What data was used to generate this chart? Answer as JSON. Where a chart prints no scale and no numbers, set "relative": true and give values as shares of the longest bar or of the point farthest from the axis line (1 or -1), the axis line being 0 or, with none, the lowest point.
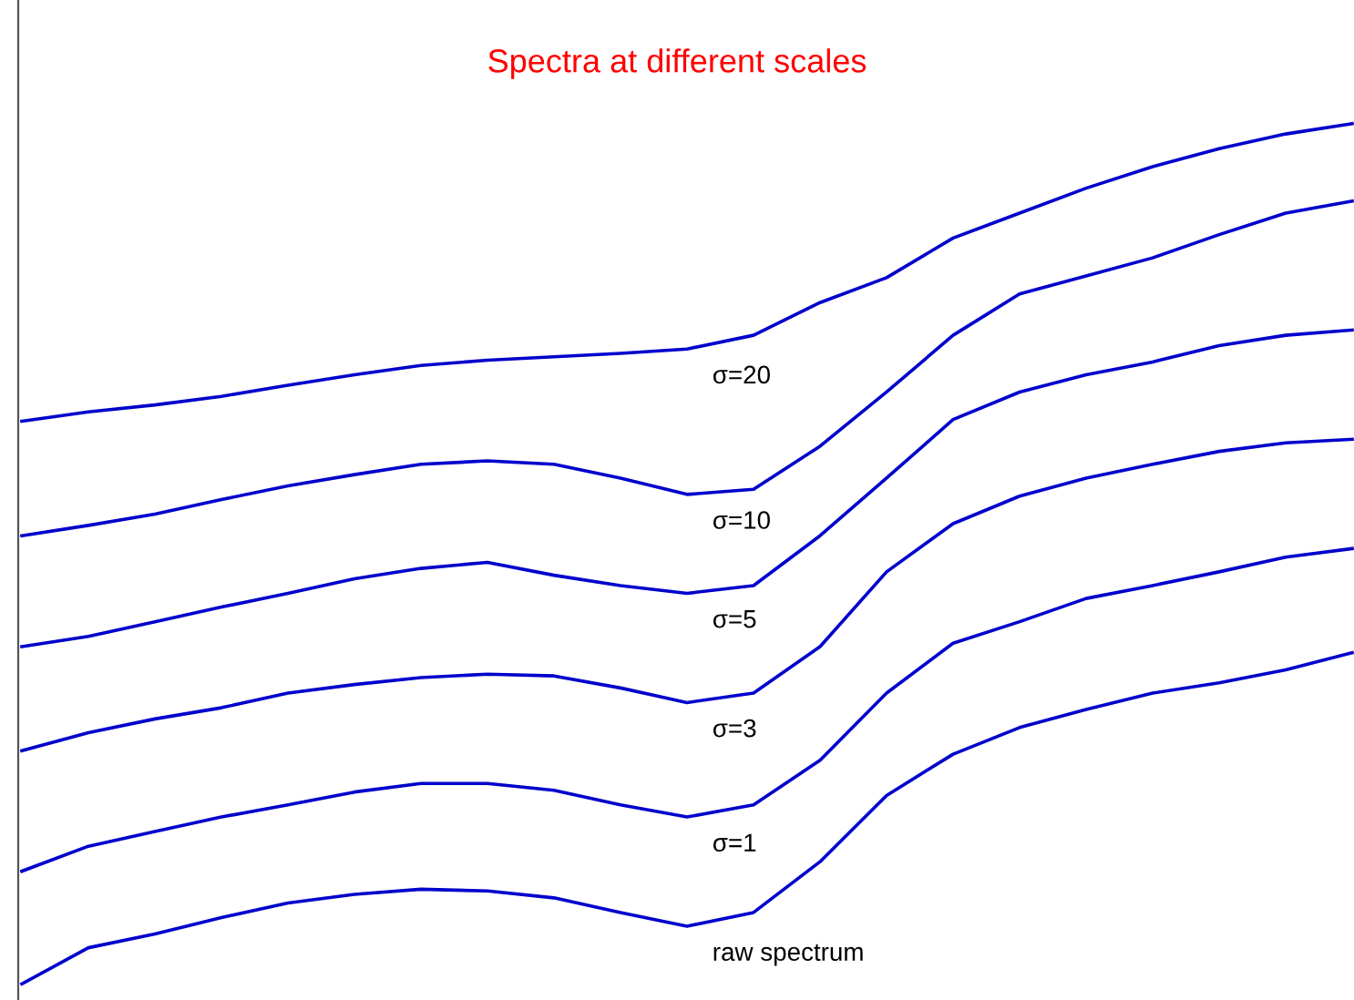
{
  "chart_data": {
    "type": "line",
    "title": "Spectra at different scales",
    "relative": true,
    "grid": false,
    "legend": false,
    "marker": "none",
    "line_style": "solid",
    "categories": [
      null,
      null,
      null,
      null,
      null,
      null,
      null,
      null,
      null,
      null,
      null,
      null,
      null,
      null,
      null,
      null,
      null,
      null,
      null,
      null,
      null
    ],
    "series": [
      {
        "name": "σ=20",
        "color": "#0000cc",
        "values": [
          0.654,
          0.665,
          0.673,
          0.683,
          0.696,
          0.708,
          0.719,
          0.725,
          0.729,
          0.733,
          0.738,
          0.754,
          0.792,
          0.821,
          0.867,
          0.896,
          0.925,
          0.95,
          0.971,
          0.988,
          1.0
        ]
      },
      {
        "name": "σ=10",
        "color": "#0000cc",
        "values": [
          0.521,
          0.533,
          0.546,
          0.563,
          0.579,
          0.592,
          0.604,
          0.608,
          0.604,
          0.588,
          0.569,
          0.575,
          0.625,
          0.688,
          0.754,
          0.802,
          0.823,
          0.844,
          0.871,
          0.896,
          0.91
        ]
      },
      {
        "name": "σ=5",
        "color": "#0000cc",
        "values": [
          0.392,
          0.404,
          0.421,
          0.438,
          0.454,
          0.471,
          0.483,
          0.49,
          0.475,
          0.463,
          0.454,
          0.463,
          0.521,
          0.588,
          0.656,
          0.688,
          0.708,
          0.723,
          0.742,
          0.754,
          0.76
        ]
      },
      {
        "name": "σ=3",
        "color": "#0000cc",
        "values": [
          0.271,
          0.292,
          0.308,
          0.321,
          0.338,
          0.348,
          0.356,
          0.36,
          0.358,
          0.344,
          0.327,
          0.338,
          0.392,
          0.479,
          0.535,
          0.567,
          0.588,
          0.604,
          0.619,
          0.629,
          0.633
        ]
      },
      {
        "name": "σ=1",
        "color": "#0000cc",
        "values": [
          0.131,
          0.16,
          0.177,
          0.194,
          0.208,
          0.223,
          0.233,
          0.233,
          0.225,
          0.208,
          0.194,
          0.208,
          0.26,
          0.338,
          0.396,
          0.421,
          0.448,
          0.463,
          0.479,
          0.496,
          0.506
        ]
      },
      {
        "name": "raw spectrum",
        "color": "#0000cc",
        "values": [
          0.0,
          0.042,
          0.058,
          0.077,
          0.094,
          0.104,
          0.11,
          0.108,
          0.1,
          0.083,
          0.067,
          0.083,
          0.142,
          0.219,
          0.267,
          0.298,
          0.319,
          0.338,
          0.35,
          0.365,
          0.385
        ]
      }
    ]
  }
}
